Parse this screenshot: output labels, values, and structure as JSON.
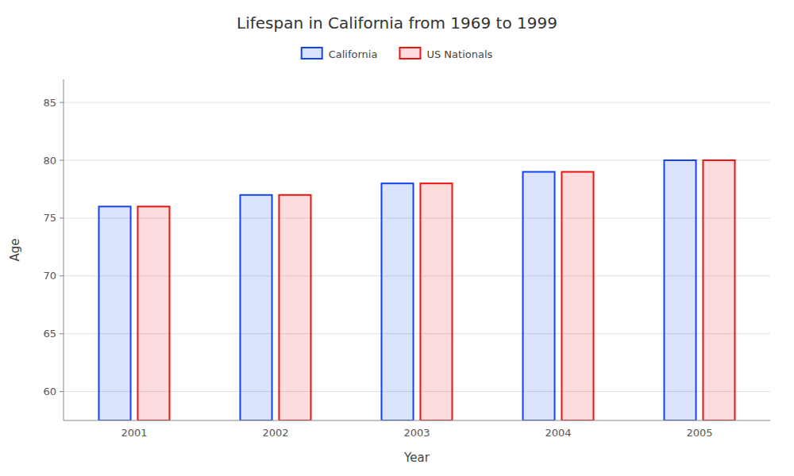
{
  "chart_data": {
    "type": "bar",
    "title": "Lifespan in California from 1969 to 1999",
    "xlabel": "Year",
    "ylabel": "Age",
    "categories": [
      "2001",
      "2002",
      "2003",
      "2004",
      "2005"
    ],
    "series": [
      {
        "name": "California",
        "color": "#1144ee",
        "values": [
          76,
          77,
          78,
          79,
          80
        ]
      },
      {
        "name": "US Nationals",
        "color": "#ee1111",
        "values": [
          76,
          77,
          78,
          79,
          80
        ]
      }
    ],
    "ylim": [
      57.5,
      87
    ],
    "yticks": [
      60,
      65,
      70,
      75,
      80,
      85
    ],
    "grid": true,
    "legend": "top"
  }
}
